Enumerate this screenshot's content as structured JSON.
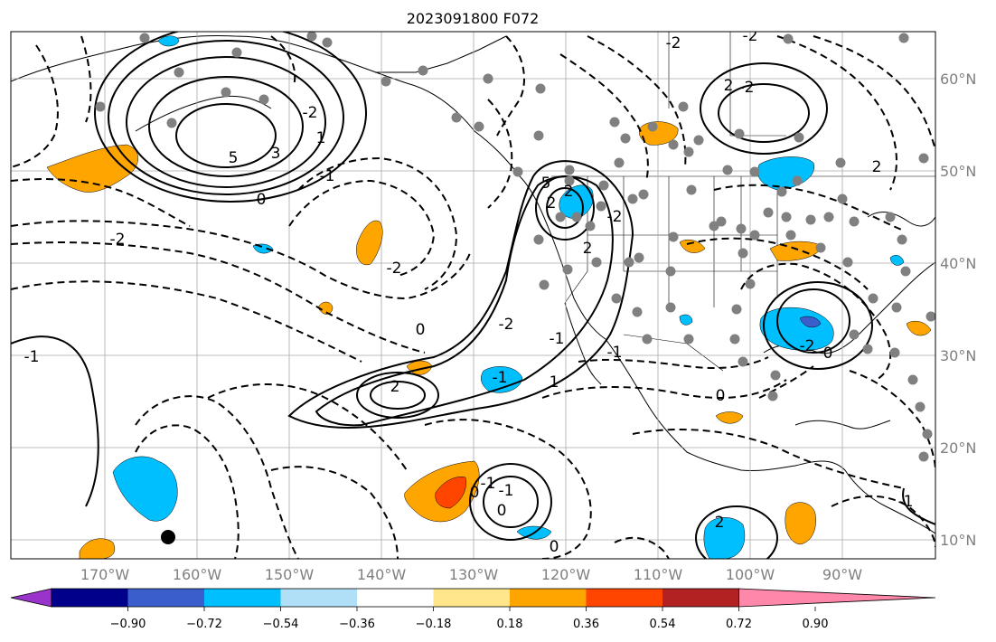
{
  "title": "2023091800 F072",
  "map": {
    "lon_labels": [
      "170°W",
      "160°W",
      "150°W",
      "140°W",
      "130°W",
      "120°W",
      "110°W",
      "100°W",
      "90°W"
    ],
    "lat_labels": [
      "60°N",
      "50°N",
      "40°N",
      "30°N",
      "20°N",
      "10°N"
    ],
    "contour_labels": [
      "5",
      "3",
      "1",
      "0",
      "-1",
      "-2",
      "2",
      "-1",
      "0",
      "-2",
      "2",
      "2",
      "-1",
      "-2",
      "2",
      "1",
      "-1",
      "-2",
      "5",
      "-2",
      "-2",
      "0",
      "2",
      "-2",
      "2",
      "-1",
      "0",
      "-1",
      "0",
      "0",
      "-1",
      "-2",
      "0",
      "2",
      "-1",
      "-2"
    ],
    "colors": {
      "land_border": "#000000",
      "grid": "#a9a9a9",
      "stations": "#808080"
    }
  },
  "colorbar": {
    "tick_labels": [
      "−0.90",
      "−0.72",
      "−0.54",
      "−0.36",
      "−0.18",
      "0.18",
      "0.36",
      "0.54",
      "0.72",
      "0.90"
    ],
    "colors": [
      "#9933cc",
      "#00008b",
      "#3a5fcd",
      "#00bfff",
      "#b0e0f8",
      "#ffffff",
      "#ffe68a",
      "#ffa500",
      "#ff4500",
      "#b22222",
      "#ff88aa"
    ],
    "extend": "both"
  }
}
